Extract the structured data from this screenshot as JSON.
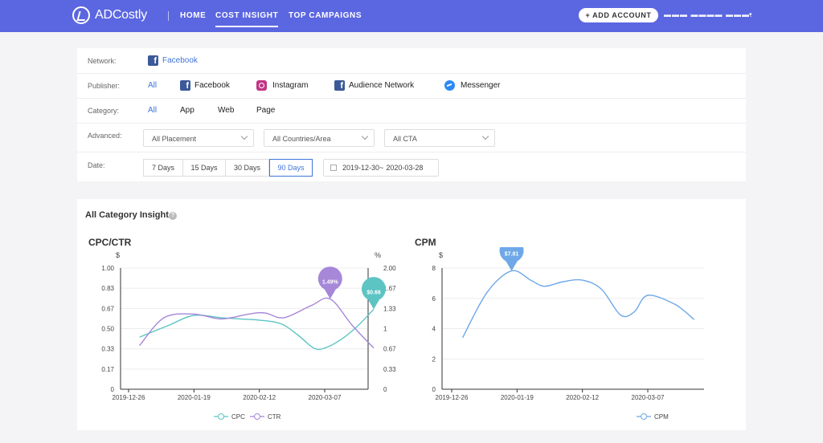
{
  "header": {
    "logo": "ADCostly",
    "nav": [
      "HOME",
      "COST INSIGHT",
      "TOP CAMPAIGNS"
    ],
    "active_nav": "COST INSIGHT",
    "add_account": "+ ADD ACCOUNT",
    "user_caret": "▾",
    "brand_color": "#5b66e1"
  },
  "filters": {
    "network": {
      "label": "Network:",
      "value": "Facebook"
    },
    "publisher": {
      "label": "Publisher:",
      "options": [
        "All",
        "Facebook",
        "Instagram",
        "Audience Network",
        "Messenger"
      ],
      "selected": "All"
    },
    "category": {
      "label": "Category:",
      "options": [
        "All",
        "App",
        "Web",
        "Page"
      ],
      "selected": "All"
    },
    "advanced": {
      "label": "Advanced:",
      "selects": [
        "All Placement",
        "All Countries/Area",
        "All CTA"
      ]
    },
    "date": {
      "label": "Date:",
      "buttons": [
        "7 Days",
        "15 Days",
        "30 Days",
        "90 Days"
      ],
      "selected": "90 Days",
      "range_start": "2019-12-30",
      "range_end": "2020-03-28",
      "range_sep": " ~"
    }
  },
  "insight": {
    "title": "All Category Insight",
    "help": "?"
  },
  "chart_data": [
    {
      "type": "line",
      "title": "CPC/CTR",
      "x": [
        "2019-12-26",
        "2020-01-19",
        "2020-02-12",
        "2020-03-07"
      ],
      "y_left_unit": "$",
      "y_right_unit": "%",
      "y_left_ticks": [
        "1.00",
        "0.83",
        "0.67",
        "0.50",
        "0.33",
        "0.17",
        "0"
      ],
      "y_right_ticks": [
        "2.00",
        "1.67",
        "1.33",
        "1",
        "0.67",
        "0.33",
        "0"
      ],
      "ylim_left": [
        0,
        1
      ],
      "ylim_right": [
        0,
        2
      ],
      "series": [
        {
          "name": "CPC",
          "axis": "left",
          "color": "#5cc4c3",
          "points": [
            [
              "2019-12-30",
              0.43
            ],
            [
              "2020-01-10",
              0.53
            ],
            [
              "2020-01-19",
              0.61
            ],
            [
              "2020-01-29",
              0.59
            ],
            [
              "2020-02-05",
              0.58
            ],
            [
              "2020-02-12",
              0.57
            ],
            [
              "2020-02-20",
              0.54
            ],
            [
              "2020-02-26",
              0.45
            ],
            [
              "2020-03-03",
              0.34
            ],
            [
              "2020-03-07",
              0.34
            ],
            [
              "2020-03-13",
              0.41
            ],
            [
              "2020-03-19",
              0.52
            ],
            [
              "2020-03-25",
              0.66
            ]
          ],
          "peak_label": "$0.66"
        },
        {
          "name": "CTR",
          "axis": "right",
          "color": "#a687d8",
          "points": [
            [
              "2019-12-30",
              0.72
            ],
            [
              "2020-01-08",
              1.18
            ],
            [
              "2020-01-19",
              1.24
            ],
            [
              "2020-01-29",
              1.16
            ],
            [
              "2020-02-08",
              1.24
            ],
            [
              "2020-02-14",
              1.26
            ],
            [
              "2020-02-21",
              1.18
            ],
            [
              "2020-03-02",
              1.38
            ],
            [
              "2020-03-09",
              1.49
            ],
            [
              "2020-03-17",
              1.06
            ],
            [
              "2020-03-25",
              0.68
            ]
          ],
          "peak_label": "1.49%"
        }
      ],
      "legend": [
        "CPC",
        "CTR"
      ],
      "legend_position": "bottom"
    },
    {
      "type": "line",
      "title": "CPM",
      "x": [
        "2019-12-26",
        "2020-01-19",
        "2020-02-12",
        "2020-03-07"
      ],
      "y_unit": "$",
      "y_ticks": [
        "8",
        "6",
        "4",
        "2",
        "0"
      ],
      "ylim": [
        0,
        8
      ],
      "series": [
        {
          "name": "CPM",
          "color": "#6ea8e8",
          "points": [
            [
              "2019-12-30",
              3.4
            ],
            [
              "2020-01-08",
              6.4
            ],
            [
              "2020-01-17",
              7.81
            ],
            [
              "2020-01-24",
              7.2
            ],
            [
              "2020-01-29",
              6.8
            ],
            [
              "2020-02-05",
              7.1
            ],
            [
              "2020-02-12",
              7.2
            ],
            [
              "2020-02-19",
              6.6
            ],
            [
              "2020-02-26",
              4.9
            ],
            [
              "2020-03-02",
              5.1
            ],
            [
              "2020-03-07",
              6.2
            ],
            [
              "2020-03-17",
              5.6
            ],
            [
              "2020-03-24",
              4.6
            ]
          ],
          "peak_label": "$7.81"
        }
      ],
      "legend": [
        "CPM"
      ],
      "legend_position": "bottom"
    }
  ]
}
